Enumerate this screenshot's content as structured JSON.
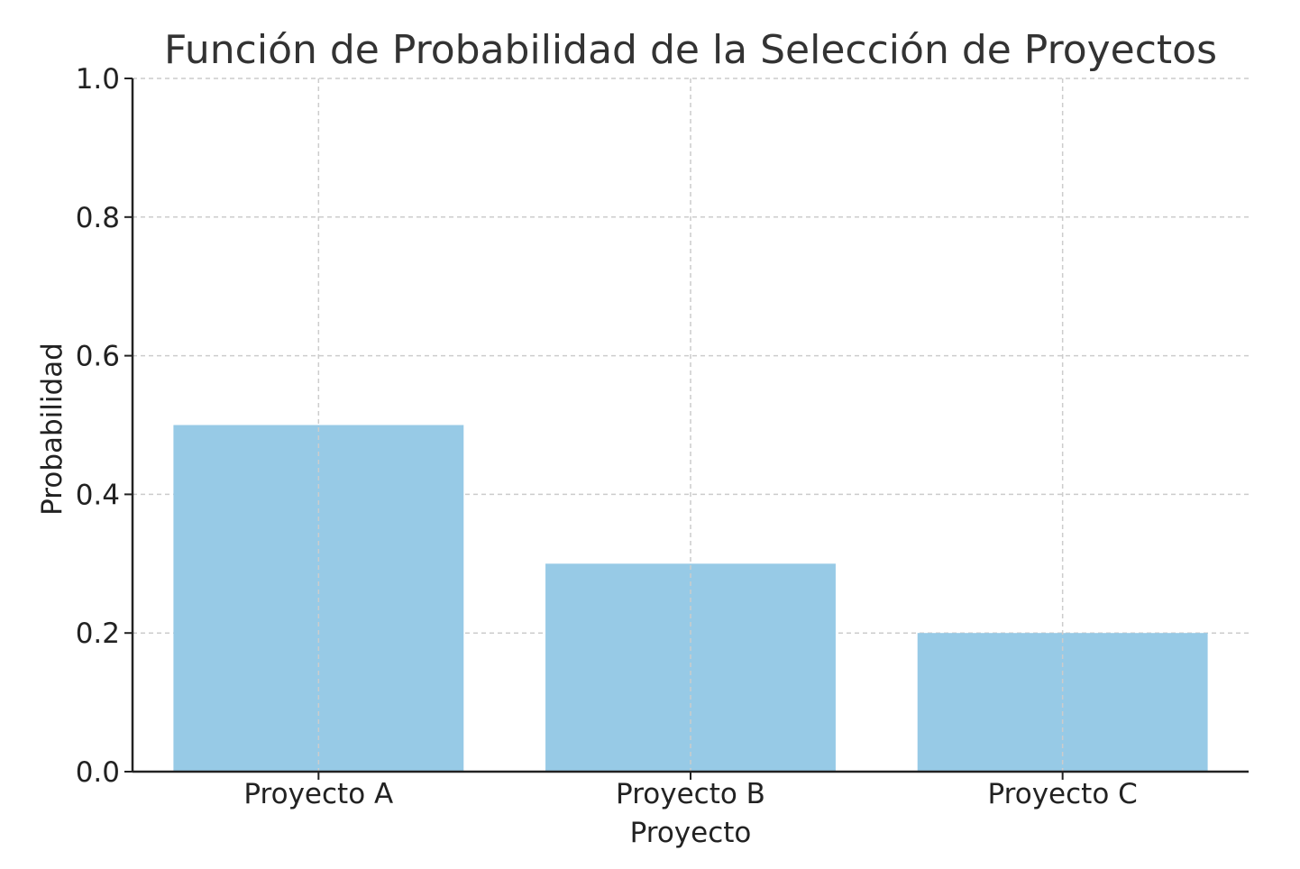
{
  "chart_data": {
    "type": "bar",
    "title": "Función de Probabilidad de la Selección de Proyectos",
    "xlabel": "Proyecto",
    "ylabel": "Probabilidad",
    "categories": [
      "Proyecto A",
      "Proyecto B",
      "Proyecto C"
    ],
    "values": [
      0.5,
      0.3,
      0.2
    ],
    "ylim": [
      0,
      1.0
    ],
    "yticks": [
      "0.0",
      "0.2",
      "0.4",
      "0.6",
      "0.8",
      "1.0"
    ],
    "grid": true,
    "colors": {
      "bar": "#97cae6",
      "axis": "#222222",
      "grid": "#cccccc"
    }
  }
}
